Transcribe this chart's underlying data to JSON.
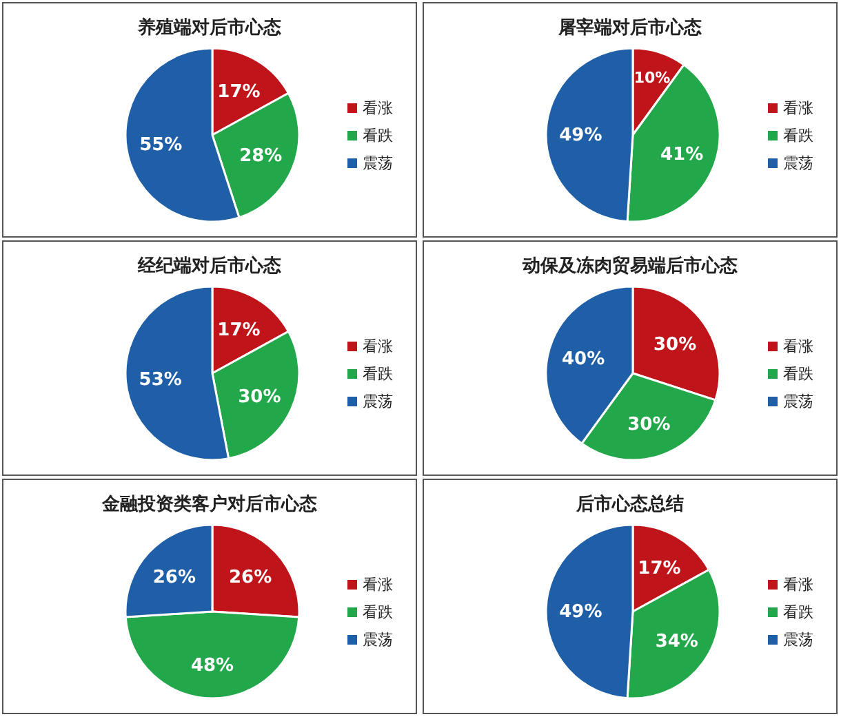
{
  "chart_data": [
    {
      "type": "pie",
      "title": "养殖端对后市心态",
      "categories": [
        "看涨",
        "看跌",
        "震荡"
      ],
      "values": [
        17,
        28,
        55
      ],
      "value_labels": [
        "17%",
        "28%",
        "55%"
      ],
      "colors": [
        "#c0141b",
        "#22a84a",
        "#1f5fa8"
      ],
      "legend": "right"
    },
    {
      "type": "pie",
      "title": "屠宰端对后市心态",
      "categories": [
        "看涨",
        "看跌",
        "震荡"
      ],
      "values": [
        10,
        41,
        49
      ],
      "value_labels": [
        "10%",
        "41%",
        "49%"
      ],
      "colors": [
        "#c0141b",
        "#22a84a",
        "#1f5fa8"
      ],
      "legend": "right"
    },
    {
      "type": "pie",
      "title": "经纪端对后市心态",
      "categories": [
        "看涨",
        "看跌",
        "震荡"
      ],
      "values": [
        17,
        30,
        53
      ],
      "value_labels": [
        "17%",
        "30%",
        "53%"
      ],
      "colors": [
        "#c0141b",
        "#22a84a",
        "#1f5fa8"
      ],
      "legend": "right"
    },
    {
      "type": "pie",
      "title": "动保及冻肉贸易端后市心态",
      "categories": [
        "看涨",
        "看跌",
        "震荡"
      ],
      "values": [
        30,
        30,
        40
      ],
      "value_labels": [
        "30%",
        "30%",
        "40%"
      ],
      "colors": [
        "#c0141b",
        "#22a84a",
        "#1f5fa8"
      ],
      "legend": "right"
    },
    {
      "type": "pie",
      "title": "金融投资类客户对后市心态",
      "categories": [
        "看涨",
        "看跌",
        "震荡"
      ],
      "values": [
        26,
        48,
        26
      ],
      "value_labels": [
        "26%",
        "48%",
        "26%"
      ],
      "colors": [
        "#c0141b",
        "#22a84a",
        "#1f5fa8"
      ],
      "legend": "right"
    },
    {
      "type": "pie",
      "title": "后市心态总结",
      "categories": [
        "看涨",
        "看跌",
        "震荡"
      ],
      "values": [
        17,
        34,
        49
      ],
      "value_labels": [
        "17%",
        "34%",
        "49%"
      ],
      "colors": [
        "#c0141b",
        "#22a84a",
        "#1f5fa8"
      ],
      "legend": "right"
    }
  ]
}
